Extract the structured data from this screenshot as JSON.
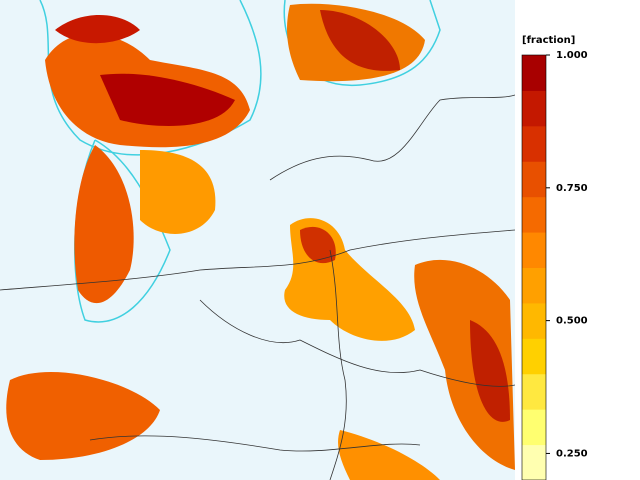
{
  "colorbar": {
    "label": "[fraction]",
    "vlim": [
      0.2,
      1.0
    ],
    "ticks": [
      {
        "value": 1,
        "label": "1.000"
      },
      {
        "value": 0.75,
        "label": "0.750"
      },
      {
        "value": 0.5,
        "label": "0.500"
      },
      {
        "value": 0.25,
        "label": "0.250"
      }
    ],
    "colors": [
      "#ffffb0",
      "#ffff70",
      "#ffe840",
      "#ffd000",
      "#ffb800",
      "#ffa000",
      "#ff8800",
      "#f56a00",
      "#e85000",
      "#d83000",
      "#c41800",
      "#a80000"
    ]
  }
}
